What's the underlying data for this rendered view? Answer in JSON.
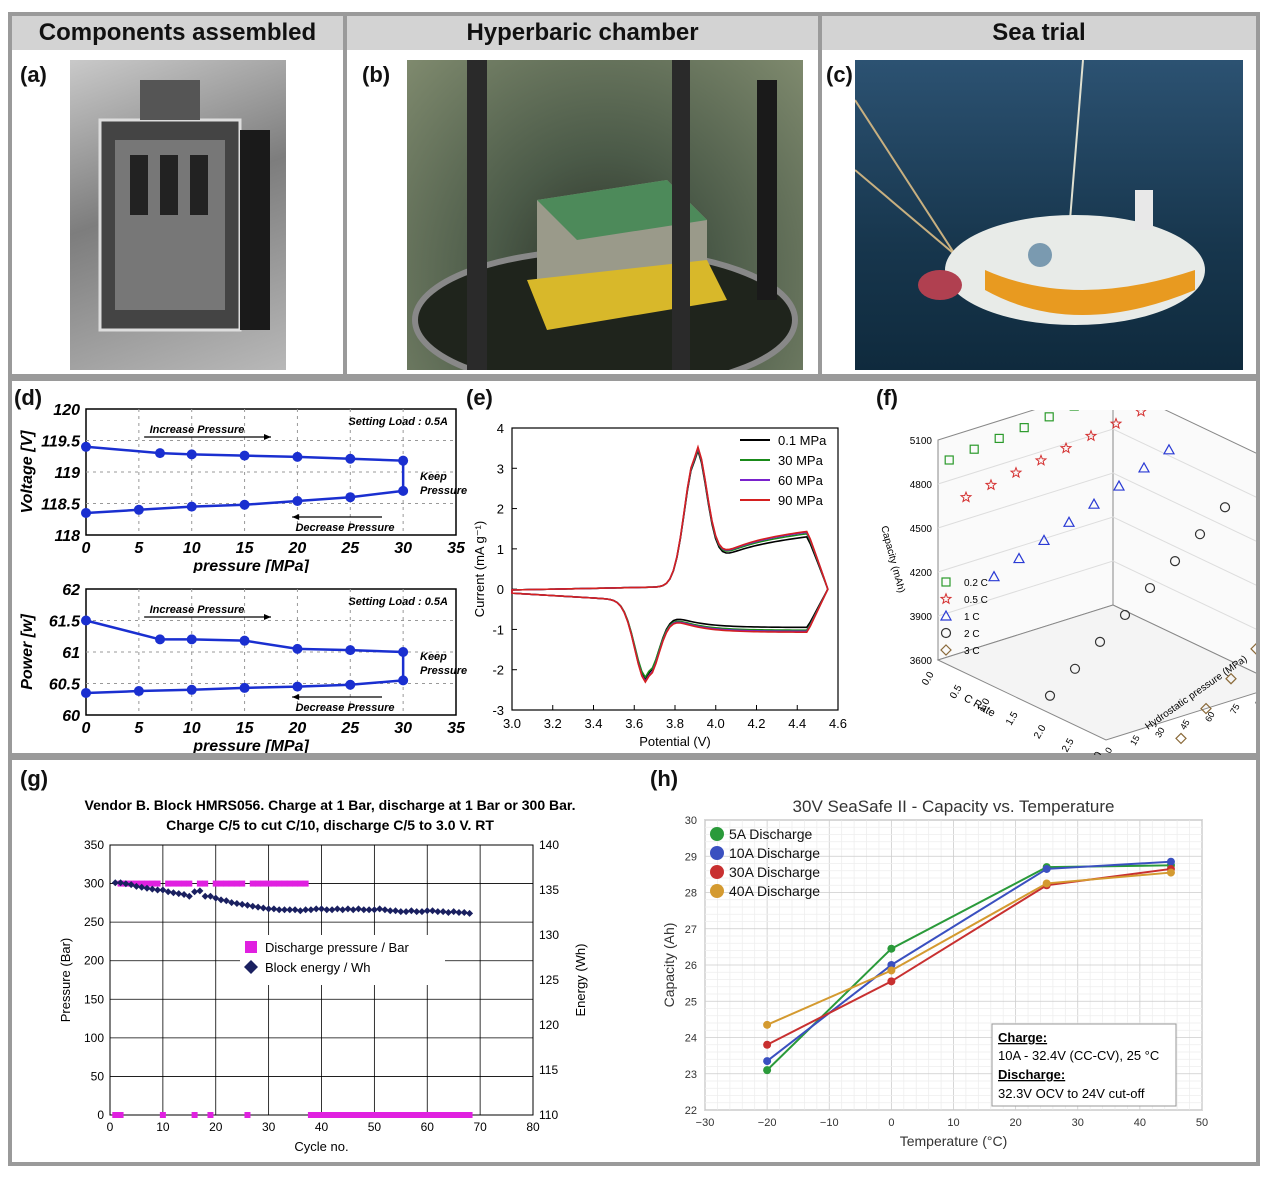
{
  "headers": [
    "Components assembled",
    "Hyperbaric chamber",
    "Sea trial"
  ],
  "panel_labels": [
    "(a)",
    "(b)",
    "(c)",
    "(d)",
    "(e)",
    "(f)",
    "(g)",
    "(h)"
  ],
  "photos": [
    {
      "name": "battery-assembly-photo",
      "tone": "#8c8c8c"
    },
    {
      "name": "hyperbaric-chamber-photo",
      "tone": "#4a5a44"
    },
    {
      "name": "submersible-sea-trial-photo",
      "tone": "#1d3d55"
    }
  ],
  "colors": {
    "frame": "#9a9a9a",
    "header": "#d3d3d3",
    "blue_series": "#1a2fd0"
  },
  "chart_data": [
    {
      "id": "d-voltage",
      "type": "line",
      "xlabel": "pressure [MPa]",
      "ylabel": "Voltage [V]",
      "xlim": [
        0,
        35
      ],
      "ylim": [
        118,
        120
      ],
      "xticks": [
        "0",
        "5",
        "10",
        "15",
        "20",
        "25",
        "30",
        "35"
      ],
      "yticks": [
        "118",
        "118.5",
        "119",
        "119.5",
        "120"
      ],
      "annotations": [
        "Setting Load : 0.5A",
        "Increase Pressure",
        "Decrease Pressure",
        "Keep",
        "Pressure"
      ],
      "series": [
        {
          "x": [
            0,
            7,
            10,
            15,
            20,
            25,
            30,
            30,
            25,
            20,
            15,
            10,
            5,
            0
          ],
          "y": [
            119.4,
            119.3,
            119.28,
            119.26,
            119.24,
            119.21,
            119.18,
            118.7,
            118.6,
            118.54,
            118.48,
            118.45,
            118.4,
            118.35
          ]
        }
      ]
    },
    {
      "id": "d-power",
      "type": "line",
      "xlabel": "pressure [MPa]",
      "ylabel": "Power [w]",
      "xlim": [
        0,
        35
      ],
      "ylim": [
        60,
        62
      ],
      "xticks": [
        "0",
        "5",
        "10",
        "15",
        "20",
        "25",
        "30",
        "35"
      ],
      "yticks": [
        "60",
        "60.5",
        "61",
        "61.5",
        "62"
      ],
      "annotations": [
        "Setting Load : 0.5A",
        "Increase Pressure",
        "Decrease Pressure",
        "Keep",
        "Pressure"
      ],
      "series": [
        {
          "x": [
            0,
            7,
            10,
            15,
            20,
            25,
            30,
            30,
            25,
            20,
            15,
            10,
            5,
            0
          ],
          "y": [
            61.5,
            61.2,
            61.2,
            61.18,
            61.05,
            61.03,
            61.0,
            60.55,
            60.48,
            60.45,
            60.43,
            60.4,
            60.38,
            60.35
          ]
        }
      ]
    },
    {
      "id": "e-cv",
      "type": "line",
      "xlabel": "Potential (V)",
      "ylabel": "Current (mA g⁻¹)",
      "xlim": [
        3.0,
        4.6
      ],
      "ylim": [
        -3,
        4
      ],
      "xticks": [
        "3.0",
        "3.2",
        "3.4",
        "3.6",
        "3.8",
        "4.0",
        "4.2",
        "4.4",
        "4.6"
      ],
      "yticks": [
        "-3",
        "-2",
        "-1",
        "0",
        "1",
        "2",
        "3",
        "4"
      ],
      "series": [
        {
          "name": "0.1 MPa",
          "color": "#000000",
          "peak": 3.42,
          "valley": -2.15,
          "upper_base": 0.7,
          "lower_base": -0.85
        },
        {
          "name": "30 MPa",
          "color": "#1a8a1a",
          "peak": 3.45,
          "valley": -2.1,
          "upper_base": 0.78,
          "lower_base": -0.92
        },
        {
          "name": "60 MPa",
          "color": "#7a22cc",
          "peak": 3.48,
          "valley": -2.2,
          "upper_base": 0.82,
          "lower_base": -0.95
        },
        {
          "name": "90 MPa",
          "color": "#d42020",
          "peak": 3.5,
          "valley": -2.22,
          "upper_base": 0.84,
          "lower_base": -0.97
        }
      ]
    },
    {
      "id": "f-capacity",
      "type": "scatter",
      "xlabel": "C Rate",
      "ylabel": "Capacity (mAh)",
      "zlabel": "Hydrostatic pressure (MPa)",
      "xticks": [
        "0.0",
        "0.5",
        "1.0",
        "1.5",
        "2.0",
        "2.5",
        "3.0"
      ],
      "yticks": [
        "3600",
        "3900",
        "4200",
        "4500",
        "4800",
        "5100"
      ],
      "zticks": [
        "0",
        "15",
        "30",
        "45",
        "60",
        "75",
        "90",
        "105"
      ],
      "pressures": [
        0,
        15,
        30,
        45,
        60,
        75,
        90,
        105
      ],
      "series": [
        {
          "name": "0.2 C",
          "rate": 0.2,
          "marker": "square",
          "color": "#2a9a2a",
          "values": [
            5000,
            5020,
            5040,
            5060,
            5080,
            5100,
            5120,
            5140
          ]
        },
        {
          "name": "0.5 C",
          "rate": 0.5,
          "marker": "star",
          "color": "#d43030",
          "values": [
            4800,
            4830,
            4860,
            4890,
            4920,
            4950,
            4980,
            5010
          ]
        },
        {
          "name": "1 C",
          "rate": 1.0,
          "marker": "triangle",
          "color": "#2a3ad4",
          "values": [
            4350,
            4420,
            4490,
            4560,
            4630,
            4700,
            4770,
            4840
          ]
        },
        {
          "name": "2 C",
          "rate": 2.0,
          "marker": "circle",
          "color": "#333333",
          "values": [
            3720,
            3850,
            3980,
            4110,
            4240,
            4370,
            4500,
            4630
          ]
        },
        {
          "name": "3 C",
          "rate": 3.0,
          "marker": "diamond",
          "color": "#8a6a3a",
          "values": [
            3000,
            3150,
            3300,
            3450,
            3600,
            3750,
            3900,
            4050
          ]
        }
      ]
    },
    {
      "id": "g-cycling",
      "type": "scatter",
      "title": "Vendor B. Block HMRS056. Charge at 1 Bar, discharge at 1 Bar or 300 Bar.",
      "subtitle": "Charge C/5 to cut C/10, discharge C/5 to 3.0 V. RT",
      "xlabel": "Cycle no.",
      "ylabel": "Pressure (Bar)",
      "y2label": "Energy (Wh)",
      "xlim": [
        0,
        80
      ],
      "ylim": [
        0,
        350
      ],
      "y2lim": [
        110,
        140
      ],
      "xticks": [
        "0",
        "10",
        "20",
        "30",
        "40",
        "50",
        "60",
        "70",
        "80"
      ],
      "yticks": [
        "0",
        "50",
        "100",
        "150",
        "200",
        "250",
        "300",
        "350"
      ],
      "y2ticks": [
        "110",
        "115",
        "120",
        "125",
        "130",
        "135",
        "140"
      ],
      "series": [
        {
          "name": "Discharge pressure / Bar",
          "color": "#e020e0",
          "high_cycles": [
            2,
            3,
            4,
            5,
            6,
            7,
            8,
            9,
            11,
            12,
            13,
            14,
            15,
            17,
            18,
            20,
            21,
            22,
            23,
            24,
            25,
            27,
            28,
            29,
            30,
            31,
            32,
            33,
            34,
            35,
            36,
            37
          ],
          "high_value": 300,
          "low_cycles": [
            1,
            2,
            10,
            16,
            19,
            26,
            38,
            39,
            40,
            41,
            42,
            43,
            44,
            45,
            46,
            47,
            48,
            49,
            50,
            51,
            52,
            53,
            54,
            55,
            56,
            57,
            58,
            59,
            60,
            61,
            62,
            63,
            64,
            65,
            66,
            67,
            68
          ],
          "low_value": 0
        },
        {
          "name": "Block energy / Wh",
          "color": "#1a2060",
          "x": [
            1,
            2,
            3,
            4,
            5,
            6,
            7,
            8,
            9,
            10,
            11,
            12,
            13,
            14,
            15,
            16,
            17,
            18,
            19,
            20,
            21,
            22,
            23,
            24,
            25,
            26,
            27,
            28,
            29,
            30,
            31,
            32,
            33,
            34,
            35,
            36,
            37,
            38,
            39,
            40,
            41,
            42,
            43,
            44,
            45,
            46,
            47,
            48,
            49,
            50,
            51,
            52,
            53,
            54,
            55,
            56,
            57,
            58,
            59,
            60,
            61,
            62,
            63,
            64,
            65,
            66,
            67,
            68
          ],
          "y": [
            135.8,
            135.8,
            135.7,
            135.6,
            135.4,
            135.3,
            135.2,
            135.1,
            135.0,
            135.0,
            134.8,
            134.7,
            134.6,
            134.5,
            134.3,
            134.8,
            134.9,
            134.3,
            134.3,
            134.1,
            133.9,
            133.8,
            133.6,
            133.5,
            133.4,
            133.3,
            133.2,
            133.1,
            133.0,
            132.9,
            132.9,
            132.8,
            132.8,
            132.8,
            132.8,
            132.7,
            132.8,
            132.8,
            132.9,
            132.9,
            132.8,
            132.8,
            132.9,
            132.8,
            132.9,
            132.8,
            132.9,
            132.8,
            132.8,
            132.8,
            132.9,
            132.8,
            132.7,
            132.7,
            132.6,
            132.6,
            132.7,
            132.6,
            132.6,
            132.7,
            132.7,
            132.6,
            132.6,
            132.5,
            132.6,
            132.5,
            132.5,
            132.4
          ]
        }
      ]
    },
    {
      "id": "h-temperature",
      "type": "line",
      "title": "30V SeaSafe II - Capacity vs. Temperature",
      "xlabel": "Temperature (°C)",
      "ylabel": "Capacity (Ah)",
      "xlim": [
        -30,
        50
      ],
      "ylim": [
        22,
        30
      ],
      "xticks": [
        "−30",
        "−20",
        "−10",
        "0",
        "10",
        "20",
        "30",
        "40",
        "50"
      ],
      "yticks": [
        "22",
        "23",
        "24",
        "25",
        "26",
        "27",
        "28",
        "29",
        "30"
      ],
      "x": [
        -20,
        0,
        25,
        45
      ],
      "series": [
        {
          "name": "5A Discharge",
          "color": "#2a9a3a",
          "values": [
            23.1,
            26.45,
            28.7,
            28.75
          ]
        },
        {
          "name": "10A Discharge",
          "color": "#3a50c0",
          "values": [
            23.35,
            26.0,
            28.65,
            28.85
          ]
        },
        {
          "name": "30A Discharge",
          "color": "#c83030",
          "values": [
            23.8,
            25.55,
            28.2,
            28.65
          ]
        },
        {
          "name": "40A Discharge",
          "color": "#d49a30",
          "values": [
            24.35,
            25.85,
            28.25,
            28.55
          ]
        }
      ],
      "note": {
        "charge_label": "Charge:",
        "charge_text": "10A - 32.4V (CC-CV), 25 °C",
        "discharge_label": "Discharge:",
        "discharge_text": "32.3V OCV to 24V cut-off"
      }
    }
  ]
}
